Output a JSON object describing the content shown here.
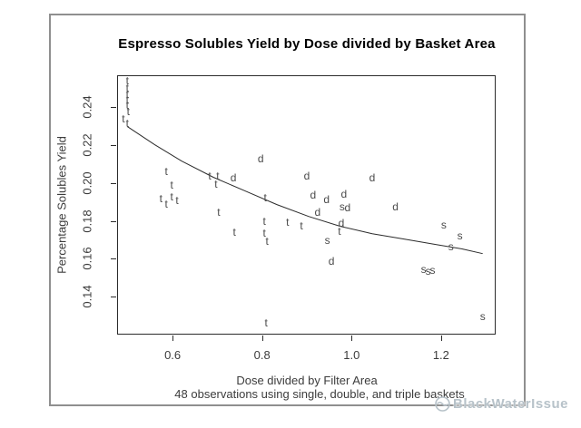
{
  "colors": {
    "frame_border": "#8f8f8f",
    "plot_border": "#2b2b2b",
    "title": "#000000",
    "axis_text": "#3c3c3c",
    "point_text": "#4a4a4a",
    "curve": "#2b2b2b",
    "watermark": "#b7c2c9"
  },
  "watermark": {
    "text": "BlackWaterIssue",
    "logo": "swirl-logo"
  },
  "chart_data": {
    "type": "scatter",
    "title": "Espresso Solubles Yield by Dose divided by Basket Area",
    "xlabel": "Dose divided by Filter Area",
    "ylabel": "Percentage Solubles Yield",
    "caption": "48 observations using single, double, and triple baskets",
    "xlim": [
      0.476,
      1.322
    ],
    "ylim": [
      0.12,
      0.257
    ],
    "grid": false,
    "legend": "none (markers are letters: s=single, d=double, t=triple basket)",
    "x_ticks": [
      {
        "value": 0.6,
        "label": "0.6"
      },
      {
        "value": 0.8,
        "label": "0.8"
      },
      {
        "value": 1.0,
        "label": "1.0"
      },
      {
        "value": 1.2,
        "label": "1.2"
      }
    ],
    "y_ticks": [
      {
        "value": 0.14,
        "label": "0.14"
      },
      {
        "value": 0.16,
        "label": "0.16"
      },
      {
        "value": 0.18,
        "label": "0.18"
      },
      {
        "value": 0.2,
        "label": "0.20"
      },
      {
        "value": 0.22,
        "label": "0.22"
      },
      {
        "value": 0.24,
        "label": "0.24"
      }
    ],
    "series": [
      {
        "name": "triple",
        "marker": "t",
        "points": [
          [
            0.499,
            0.254
          ],
          [
            0.499,
            0.2505
          ],
          [
            0.499,
            0.247
          ],
          [
            0.499,
            0.2443
          ],
          [
            0.499,
            0.241
          ],
          [
            0.501,
            0.238
          ],
          [
            0.49,
            0.2338
          ],
          [
            0.499,
            0.2318
          ],
          [
            0.586,
            0.206
          ],
          [
            0.598,
            0.1992
          ],
          [
            0.574,
            0.192
          ],
          [
            0.586,
            0.1892
          ],
          [
            0.598,
            0.193
          ],
          [
            0.61,
            0.1911
          ],
          [
            0.683,
            0.204
          ],
          [
            0.701,
            0.204
          ],
          [
            0.697,
            0.1997
          ],
          [
            0.703,
            0.1848
          ],
          [
            0.738,
            0.1743
          ],
          [
            0.807,
            0.1925
          ],
          [
            0.805,
            0.18
          ],
          [
            0.805,
            0.1738
          ],
          [
            0.811,
            0.1695
          ],
          [
            0.809,
            0.1263
          ],
          [
            0.857,
            0.1796
          ],
          [
            0.888,
            0.1776
          ],
          [
            0.973,
            0.1748
          ]
        ]
      },
      {
        "name": "double",
        "marker": "d",
        "points": [
          [
            0.736,
            0.2031
          ],
          [
            0.797,
            0.2127
          ],
          [
            0.9,
            0.204
          ],
          [
            0.914,
            0.1939
          ],
          [
            0.944,
            0.1916
          ],
          [
            0.924,
            0.1848
          ],
          [
            0.983,
            0.1944
          ],
          [
            0.991,
            0.1872
          ],
          [
            0.977,
            0.1791
          ],
          [
            0.955,
            0.159
          ],
          [
            1.046,
            0.2031
          ],
          [
            1.098,
            0.1877
          ]
        ]
      },
      {
        "name": "single",
        "marker": "s",
        "points": [
          [
            0.979,
            0.1877
          ],
          [
            0.946,
            0.17
          ],
          [
            1.206,
            0.1781
          ],
          [
            1.242,
            0.1724
          ],
          [
            1.222,
            0.1666
          ],
          [
            1.161,
            0.1546
          ],
          [
            1.171,
            0.1537
          ],
          [
            1.181,
            0.1541
          ],
          [
            1.293,
            0.1297
          ]
        ]
      },
      {
        "name": "fit-curve",
        "marker": "line",
        "points": [
          [
            0.499,
            0.2299
          ],
          [
            0.56,
            0.2203
          ],
          [
            0.62,
            0.2117
          ],
          [
            0.691,
            0.2031
          ],
          [
            0.762,
            0.1959
          ],
          [
            0.833,
            0.1887
          ],
          [
            0.904,
            0.1824
          ],
          [
            0.975,
            0.1772
          ],
          [
            1.046,
            0.1733
          ],
          [
            1.117,
            0.1705
          ],
          [
            1.188,
            0.1676
          ],
          [
            1.248,
            0.1652
          ],
          [
            1.293,
            0.1628
          ]
        ]
      }
    ]
  }
}
